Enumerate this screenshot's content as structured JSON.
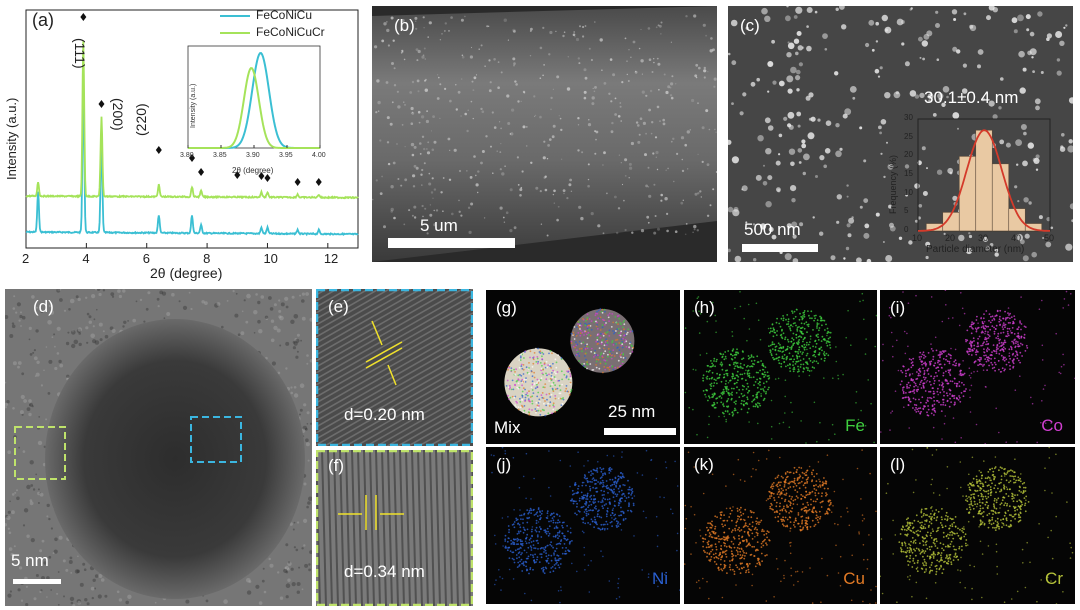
{
  "panels": {
    "a": {
      "label": "(a)",
      "xlabel": "2θ (degree)",
      "ylabel": "Intensity (a.u.)",
      "xticks": [
        "2",
        "4",
        "6",
        "8",
        "10",
        "12"
      ],
      "legend": [
        "FeCoNiCu",
        "FeCoNiCuCr"
      ],
      "peaks": [
        "(111)",
        "(200)",
        "(220)"
      ],
      "inset": {
        "ylabel": "Intensity (a.u.)",
        "xlabel": "2θ (degree)",
        "xticks": [
          "3.80",
          "3.85",
          "3.90",
          "3.95",
          "4.00"
        ]
      },
      "colors": {
        "FeCoNiCu": "#3bbfd3",
        "FeCoNiCuCr": "#a5e35a"
      }
    },
    "b": {
      "label": "(b)",
      "scalebar": "5 um"
    },
    "c": {
      "label": "(c)",
      "scalebar": "500 nm",
      "size_label": "30.1±0.4 nm",
      "hist": {
        "xlabel": "Particle diameter (nm)",
        "ylabel": "Frequency (%)",
        "xticks": [
          "10",
          "20",
          "30",
          "40",
          "50"
        ],
        "yticks": [
          "0",
          "5",
          "10",
          "15",
          "20",
          "25",
          "30"
        ]
      }
    },
    "d": {
      "label": "(d)",
      "scalebar": "5 nm"
    },
    "e": {
      "label": "(e)",
      "spacing": "d=0.20 nm"
    },
    "f": {
      "label": "(f)",
      "spacing": "d=0.34 nm"
    },
    "g": {
      "label": "(g)",
      "element": "Mix",
      "scalebar": "25 nm"
    },
    "h": {
      "label": "(h)",
      "element": "Fe",
      "color": "#3fcf3f"
    },
    "i": {
      "label": "(i)",
      "element": "Co",
      "color": "#d03fd0"
    },
    "j": {
      "label": "(j)",
      "element": "Ni",
      "color": "#2a5fd0"
    },
    "k": {
      "label": "(k)",
      "element": "Cu",
      "color": "#e27a25"
    },
    "l": {
      "label": "(l)",
      "element": "Cr",
      "color": "#b7c43a"
    }
  },
  "chart_data": [
    {
      "type": "line",
      "xlabel": "2θ (degree)",
      "ylabel": "Intensity (a.u.)",
      "xlim": [
        2,
        13
      ],
      "series": [
        {
          "name": "FeCoNiCu",
          "peaks_x": [
            2.4,
            3.9,
            4.5,
            6.4,
            7.5,
            7.8,
            9.8,
            10.0,
            11.0,
            11.7
          ]
        },
        {
          "name": "FeCoNiCuCr",
          "peaks_x": [
            2.4,
            3.9,
            4.5,
            6.4,
            7.5,
            7.8,
            9.8,
            10.0,
            11.0,
            11.7
          ]
        }
      ]
    },
    {
      "type": "bar",
      "xlabel": "Particle diameter (nm)",
      "ylabel": "Frequency (%)",
      "xlim": [
        10,
        50
      ],
      "ylim": [
        0,
        30
      ],
      "categories": [
        15,
        20,
        25,
        30,
        35,
        40,
        45
      ],
      "values": [
        2,
        5,
        20,
        27,
        18,
        6,
        2
      ]
    }
  ]
}
